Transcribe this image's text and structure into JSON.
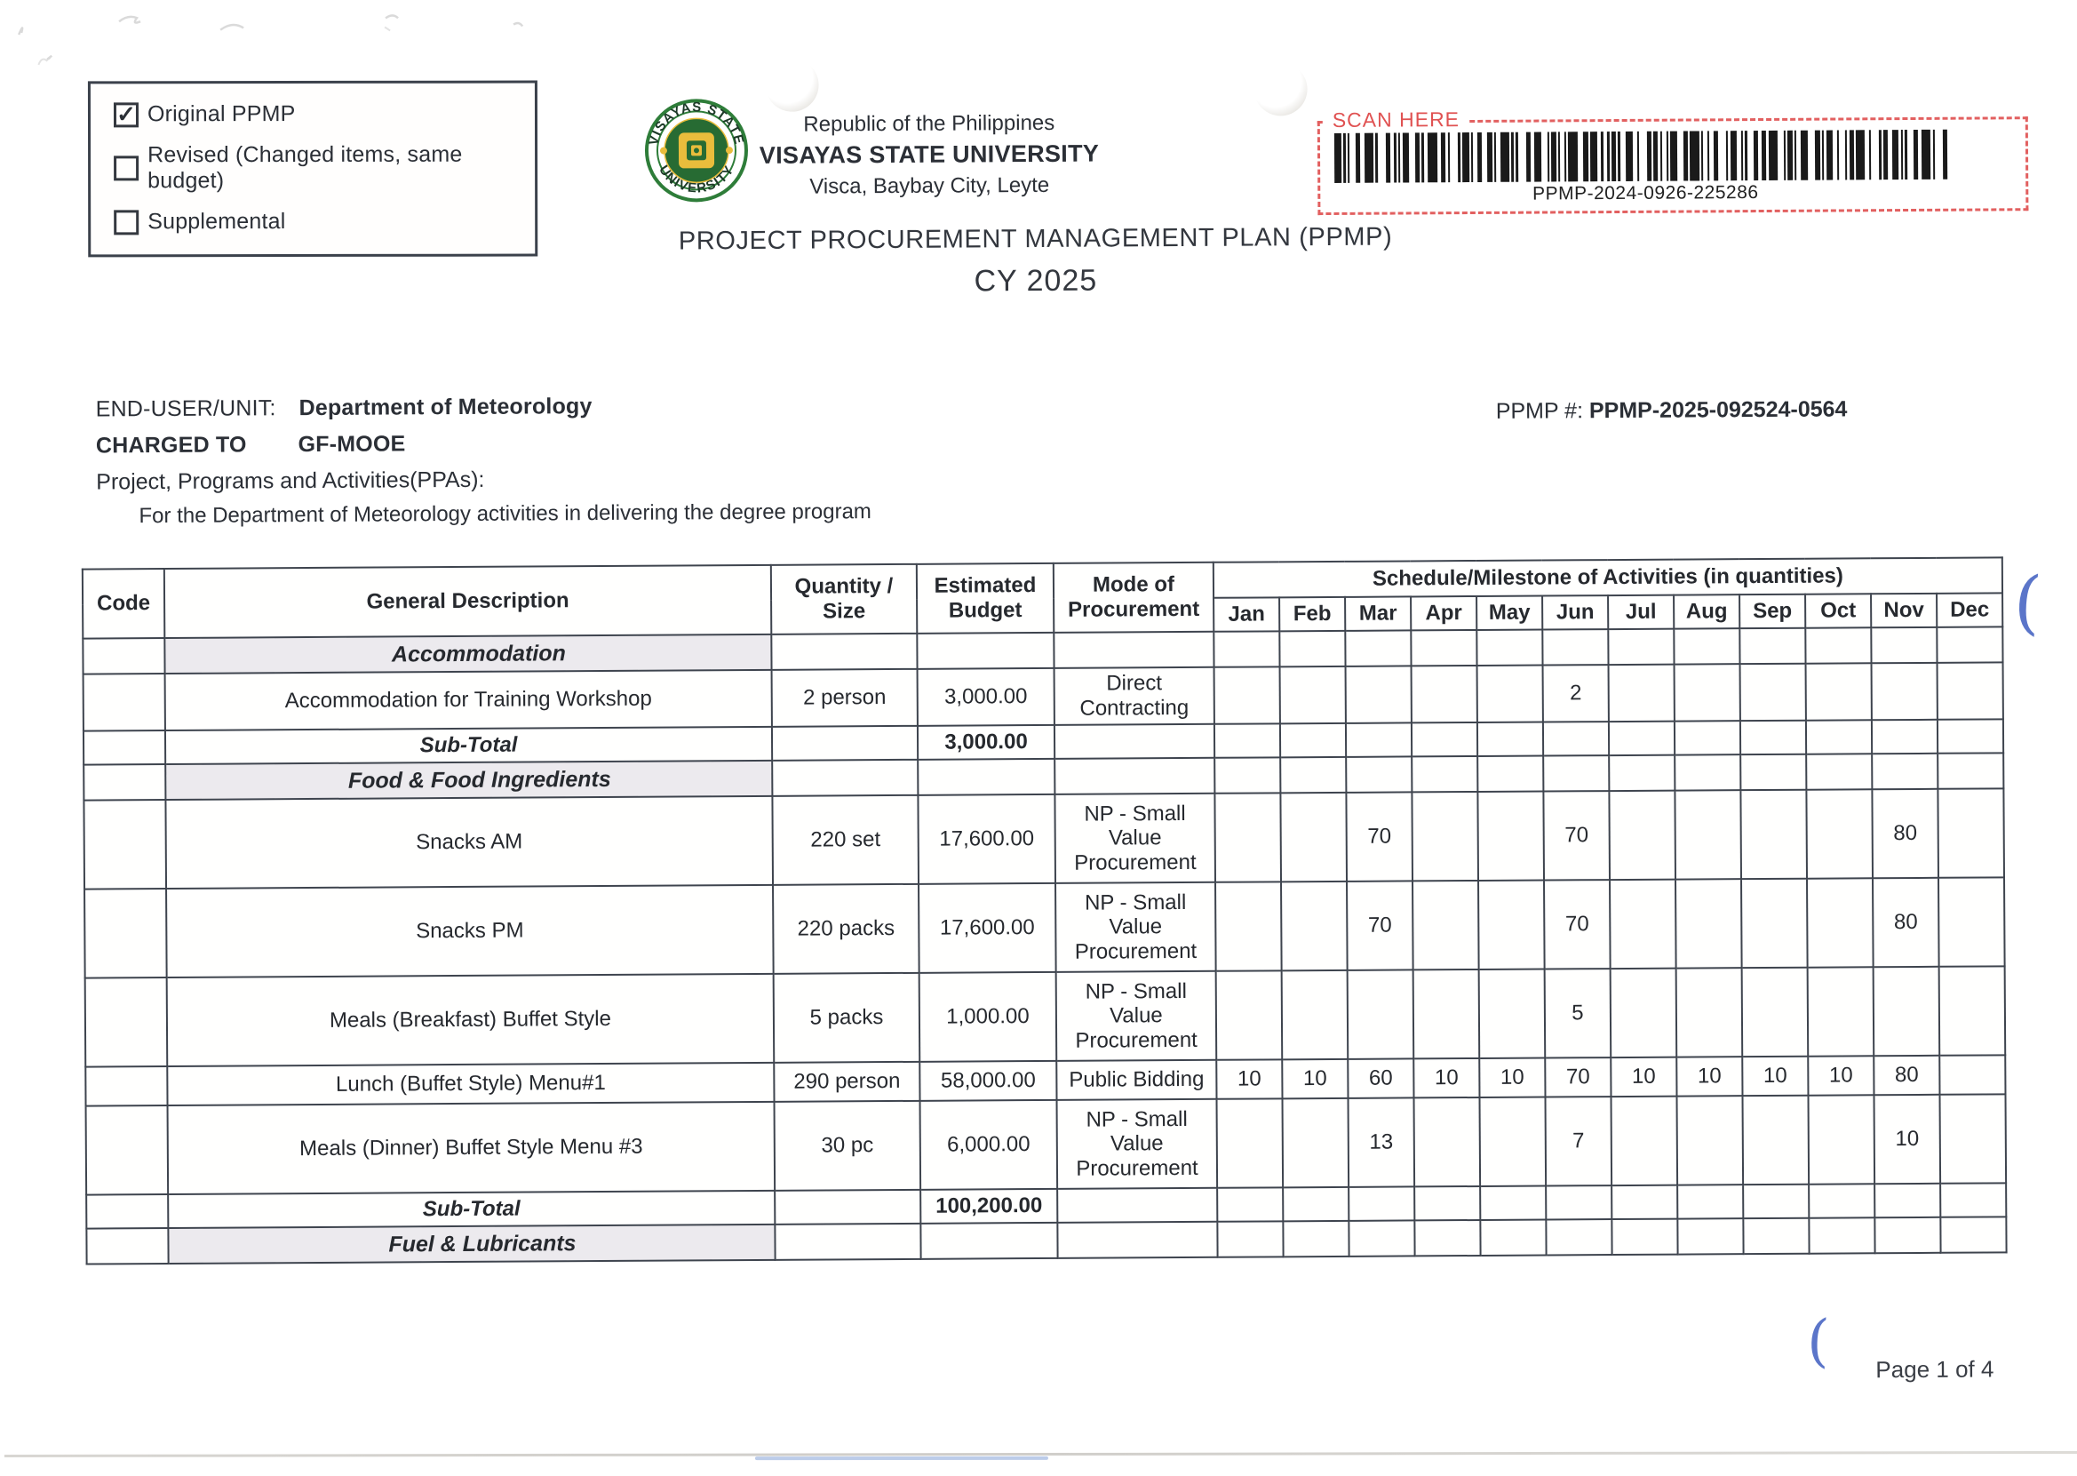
{
  "form_type": {
    "options": [
      {
        "label": "Original PPMP",
        "checked": true
      },
      {
        "label": "Revised (Changed items, same budget)",
        "checked": false
      },
      {
        "label": "Supplemental",
        "checked": false
      }
    ]
  },
  "header": {
    "republic_line": "Republic of the Philippines",
    "university_name": "VISAYAS STATE UNIVERSITY",
    "university_address": "Visca, Baybay City, Leyte",
    "logo_top_text": "VISAYAS STATE",
    "logo_bottom_text": "UNIVERSITY",
    "document_title": "PROJECT PROCUREMENT MANAGEMENT PLAN (PPMP)",
    "calendar_year": "CY 2025"
  },
  "scan_box": {
    "label": "SCAN HERE",
    "barcode_value": "PPMP-2024-0926-225286",
    "border_color": "#e26060"
  },
  "details": {
    "end_user_label": "END-USER/UNIT:",
    "end_user": "Department of Meteorology",
    "charged_to_label": "CHARGED TO",
    "charged_to": "GF-MOOE",
    "ppas_label": "Project, Programs and Activities(PPAs):",
    "ppas_description": "For the Department of Meteorology activities in delivering the degree program",
    "ppmp_number_label": "PPMP #:",
    "ppmp_number": "PPMP-2025-092524-0564"
  },
  "table": {
    "column_headers": {
      "code": "Code",
      "description": "General Description",
      "quantity": "Quantity / Size",
      "budget": "Estimated Budget",
      "mode": "Mode of Procurement",
      "schedule": "Schedule/Milestone of Activities (in quantities)"
    },
    "months": [
      "Jan",
      "Feb",
      "Mar",
      "Apr",
      "May",
      "Jun",
      "Jul",
      "Aug",
      "Sep",
      "Oct",
      "Nov",
      "Dec"
    ],
    "rows": [
      {
        "type": "category",
        "description": "Accommodation"
      },
      {
        "type": "item",
        "description": "Accommodation for Training Workshop",
        "quantity": "2 person",
        "budget": "3,000.00",
        "mode": "Direct Contracting",
        "schedule": [
          "",
          "",
          "",
          "",
          "",
          "2",
          "",
          "",
          "",
          "",
          "",
          ""
        ]
      },
      {
        "type": "subtotal",
        "description": "Sub-Total",
        "budget": "3,000.00"
      },
      {
        "type": "category",
        "description": "Food & Food Ingredients"
      },
      {
        "type": "item",
        "size": "tall",
        "description": "Snacks AM",
        "quantity": "220 set",
        "budget": "17,600.00",
        "mode": "NP - Small Value Procurement",
        "schedule": [
          "",
          "",
          "70",
          "",
          "",
          "70",
          "",
          "",
          "",
          "",
          "80",
          ""
        ]
      },
      {
        "type": "item",
        "size": "tall",
        "description": "Snacks PM",
        "quantity": "220 packs",
        "budget": "17,600.00",
        "mode": "NP - Small Value Procurement",
        "schedule": [
          "",
          "",
          "70",
          "",
          "",
          "70",
          "",
          "",
          "",
          "",
          "80",
          ""
        ]
      },
      {
        "type": "item",
        "size": "tall",
        "description": "Meals (Breakfast) Buffet Style",
        "quantity": "5 packs",
        "budget": "1,000.00",
        "mode": "NP - Small Value Procurement",
        "schedule": [
          "",
          "",
          "",
          "",
          "",
          "5",
          "",
          "",
          "",
          "",
          "",
          ""
        ]
      },
      {
        "type": "item",
        "size": "short",
        "description": "Lunch (Buffet Style) Menu#1",
        "quantity": "290 person",
        "budget": "58,000.00",
        "mode": "Public Bidding",
        "schedule": [
          "10",
          "10",
          "60",
          "10",
          "10",
          "70",
          "10",
          "10",
          "10",
          "10",
          "80",
          ""
        ]
      },
      {
        "type": "item",
        "size": "tall",
        "description": "Meals (Dinner) Buffet Style Menu #3",
        "quantity": "30 pc",
        "budget": "6,000.00",
        "mode": "NP - Small Value Procurement",
        "schedule": [
          "",
          "",
          "13",
          "",
          "",
          "7",
          "",
          "",
          "",
          "",
          "10",
          ""
        ]
      },
      {
        "type": "subtotal",
        "description": "Sub-Total",
        "budget": "100,200.00"
      },
      {
        "type": "category",
        "description": "Fuel & Lubricants"
      }
    ]
  },
  "footer": {
    "page_indicator": "Page 1 of 4"
  }
}
